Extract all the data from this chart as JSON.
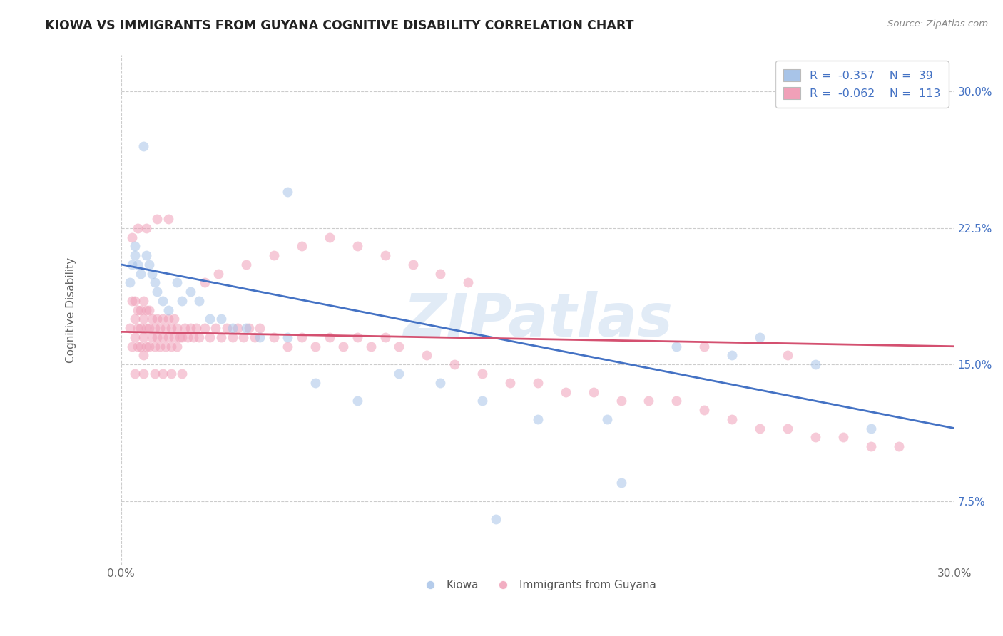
{
  "title": "KIOWA VS IMMIGRANTS FROM GUYANA COGNITIVE DISABILITY CORRELATION CHART",
  "source": "Source: ZipAtlas.com",
  "ylabel": "Cognitive Disability",
  "xlim": [
    0.0,
    0.3
  ],
  "ylim": [
    0.04,
    0.32
  ],
  "yticks": [
    0.075,
    0.15,
    0.225,
    0.3
  ],
  "ytick_labels": [
    "7.5%",
    "15.0%",
    "22.5%",
    "30.0%"
  ],
  "blue_color": "#a8c4e8",
  "pink_color": "#f0a0b8",
  "blue_line_color": "#4472c4",
  "pink_line_color": "#d45070",
  "scatter_alpha": 0.55,
  "marker_size": 100,
  "kiowa_line_x0": 0.0,
  "kiowa_line_y0": 0.205,
  "kiowa_line_x1": 0.3,
  "kiowa_line_y1": 0.115,
  "guyana_line_x0": 0.0,
  "guyana_line_y0": 0.168,
  "guyana_line_x1": 0.3,
  "guyana_line_y1": 0.16,
  "kiowa_x": [
    0.003,
    0.004,
    0.005,
    0.005,
    0.006,
    0.007,
    0.008,
    0.009,
    0.01,
    0.011,
    0.012,
    0.013,
    0.015,
    0.017,
    0.02,
    0.022,
    0.025,
    0.028,
    0.032,
    0.036,
    0.04,
    0.045,
    0.05,
    0.06,
    0.07,
    0.085,
    0.1,
    0.115,
    0.13,
    0.15,
    0.175,
    0.2,
    0.22,
    0.23,
    0.25,
    0.27,
    0.06,
    0.135,
    0.18
  ],
  "kiowa_y": [
    0.195,
    0.205,
    0.21,
    0.215,
    0.205,
    0.2,
    0.27,
    0.21,
    0.205,
    0.2,
    0.195,
    0.19,
    0.185,
    0.18,
    0.195,
    0.185,
    0.19,
    0.185,
    0.175,
    0.175,
    0.17,
    0.17,
    0.165,
    0.165,
    0.14,
    0.13,
    0.145,
    0.14,
    0.13,
    0.12,
    0.12,
    0.16,
    0.155,
    0.165,
    0.15,
    0.115,
    0.245,
    0.065,
    0.085
  ],
  "guyana_x": [
    0.003,
    0.004,
    0.004,
    0.005,
    0.005,
    0.005,
    0.006,
    0.006,
    0.006,
    0.007,
    0.007,
    0.007,
    0.008,
    0.008,
    0.008,
    0.008,
    0.009,
    0.009,
    0.009,
    0.01,
    0.01,
    0.01,
    0.011,
    0.011,
    0.012,
    0.012,
    0.013,
    0.013,
    0.014,
    0.014,
    0.015,
    0.015,
    0.016,
    0.016,
    0.017,
    0.017,
    0.018,
    0.018,
    0.019,
    0.019,
    0.02,
    0.02,
    0.021,
    0.022,
    0.023,
    0.024,
    0.025,
    0.026,
    0.027,
    0.028,
    0.03,
    0.032,
    0.034,
    0.036,
    0.038,
    0.04,
    0.042,
    0.044,
    0.046,
    0.048,
    0.05,
    0.055,
    0.06,
    0.065,
    0.07,
    0.075,
    0.08,
    0.085,
    0.09,
    0.095,
    0.1,
    0.11,
    0.12,
    0.13,
    0.14,
    0.15,
    0.16,
    0.17,
    0.18,
    0.19,
    0.2,
    0.21,
    0.22,
    0.23,
    0.24,
    0.25,
    0.26,
    0.27,
    0.28,
    0.03,
    0.035,
    0.045,
    0.055,
    0.065,
    0.075,
    0.085,
    0.095,
    0.105,
    0.115,
    0.125,
    0.005,
    0.008,
    0.012,
    0.015,
    0.018,
    0.022,
    0.004,
    0.006,
    0.009,
    0.013,
    0.017,
    0.21,
    0.24
  ],
  "guyana_y": [
    0.17,
    0.185,
    0.16,
    0.165,
    0.175,
    0.185,
    0.16,
    0.17,
    0.18,
    0.16,
    0.17,
    0.18,
    0.155,
    0.165,
    0.175,
    0.185,
    0.16,
    0.17,
    0.18,
    0.16,
    0.17,
    0.18,
    0.165,
    0.175,
    0.16,
    0.17,
    0.165,
    0.175,
    0.16,
    0.17,
    0.165,
    0.175,
    0.16,
    0.17,
    0.165,
    0.175,
    0.16,
    0.17,
    0.165,
    0.175,
    0.16,
    0.17,
    0.165,
    0.165,
    0.17,
    0.165,
    0.17,
    0.165,
    0.17,
    0.165,
    0.17,
    0.165,
    0.17,
    0.165,
    0.17,
    0.165,
    0.17,
    0.165,
    0.17,
    0.165,
    0.17,
    0.165,
    0.16,
    0.165,
    0.16,
    0.165,
    0.16,
    0.165,
    0.16,
    0.165,
    0.16,
    0.155,
    0.15,
    0.145,
    0.14,
    0.14,
    0.135,
    0.135,
    0.13,
    0.13,
    0.13,
    0.125,
    0.12,
    0.115,
    0.115,
    0.11,
    0.11,
    0.105,
    0.105,
    0.195,
    0.2,
    0.205,
    0.21,
    0.215,
    0.22,
    0.215,
    0.21,
    0.205,
    0.2,
    0.195,
    0.145,
    0.145,
    0.145,
    0.145,
    0.145,
    0.145,
    0.22,
    0.225,
    0.225,
    0.23,
    0.23,
    0.16,
    0.155
  ]
}
